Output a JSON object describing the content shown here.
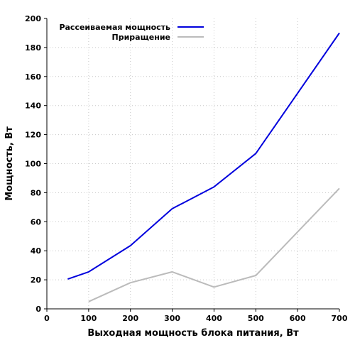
{
  "chart_data": {
    "type": "line",
    "title": "",
    "xlabel": "Выходная мощность блока питания, Вт",
    "ylabel": "Мощность, Вт",
    "xlim": [
      0,
      700
    ],
    "ylim": [
      0,
      200
    ],
    "x_ticks": [
      "0",
      "100",
      "200",
      "300",
      "400",
      "500",
      "600",
      "700"
    ],
    "y_ticks": [
      "0",
      "20",
      "40",
      "60",
      "80",
      "100",
      "120",
      "140",
      "160",
      "180",
      "200"
    ],
    "grid": true,
    "legend_position": "top-left",
    "series": [
      {
        "name": "Рассеиваемая мощность",
        "color": "#0000dd",
        "x": [
          50,
          100,
          200,
          300,
          400,
          500,
          700
        ],
        "y": [
          20.5,
          25.5,
          43.5,
          69,
          84,
          107,
          190
        ]
      },
      {
        "name": "Приращение",
        "color": "#bbbbbb",
        "x": [
          100,
          200,
          300,
          400,
          500,
          700
        ],
        "y": [
          5,
          18,
          25.5,
          15,
          23,
          83
        ]
      }
    ]
  }
}
